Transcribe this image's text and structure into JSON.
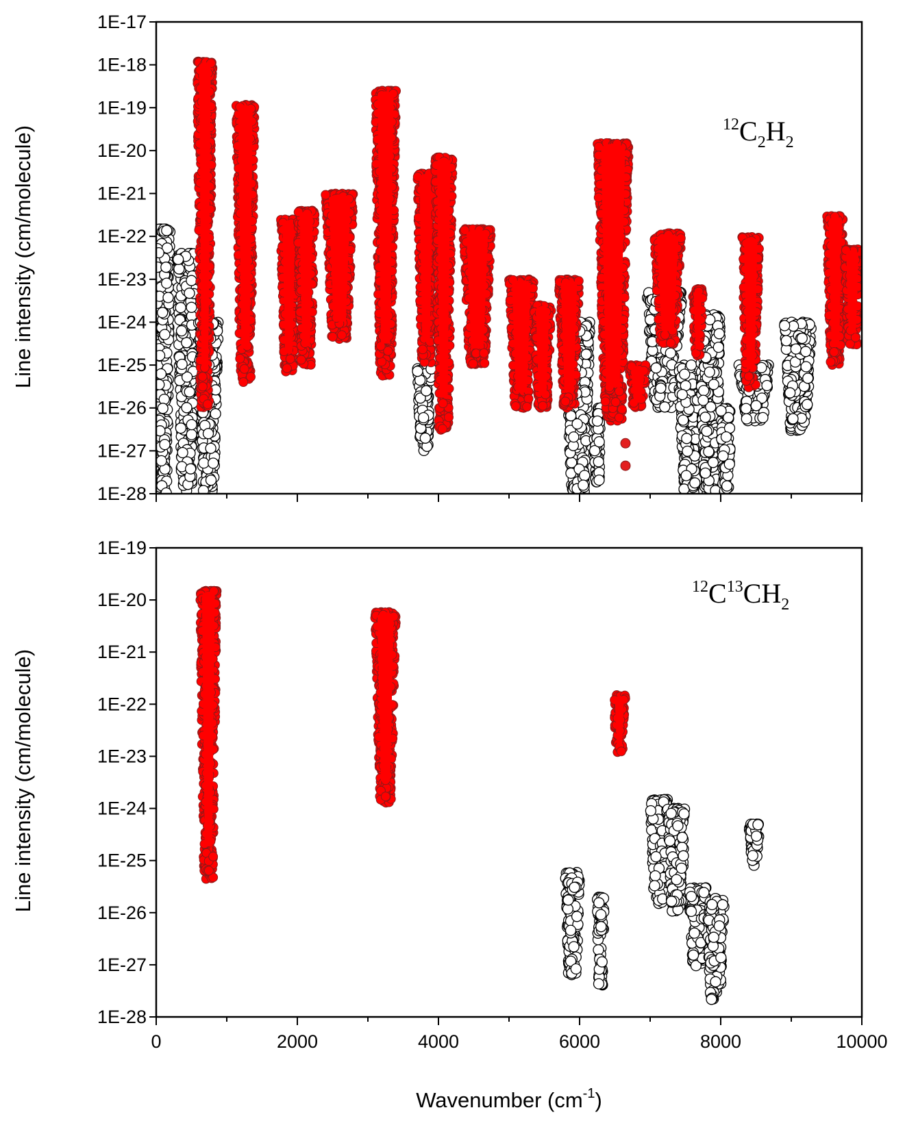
{
  "chart_data": [
    {
      "type": "scatter",
      "panel": "top",
      "xlim": [
        0,
        10000
      ],
      "ylim": [
        1e-28,
        1e-17
      ],
      "yscale": "log",
      "ylabel": "Line intensity (cm/molecule)",
      "xlabel": "",
      "species_label": {
        "pre": "12",
        "sub1": "2",
        "mid": "C",
        "post": "H",
        "sub2": "2"
      },
      "y_ticks": [
        "1E-17",
        "1E-18",
        "1E-19",
        "1E-20",
        "1E-21",
        "1E-22",
        "1E-23",
        "1E-24",
        "1E-25",
        "1E-26",
        "1E-27",
        "1E-28"
      ],
      "x_ticks": [],
      "series": [
        {
          "style": "open-circle",
          "bands": [
            {
              "x": [
                0,
                200
              ],
              "ymax": 1.5e-22,
              "ymin": 1e-28
            },
            {
              "x": [
                300,
                560
              ],
              "ymax": 4e-23,
              "ymin": 1e-28
            },
            {
              "x": [
                600,
                880
              ],
              "ymax": 1e-24,
              "ymin": 1e-28
            },
            {
              "x": [
                3700,
                3900
              ],
              "ymax": 1e-25,
              "ymin": 1e-27
            },
            {
              "x": [
                5800,
                6150
              ],
              "ymax": 1e-24,
              "ymin": 1e-28
            },
            {
              "x": [
                6200,
                6300
              ],
              "ymax": 1e-26,
              "ymin": 1.5e-28
            },
            {
              "x": [
                6950,
                7450
              ],
              "ymax": 5e-24,
              "ymin": 1e-26
            },
            {
              "x": [
                7400,
                7700
              ],
              "ymax": 1e-25,
              "ymin": 1e-28
            },
            {
              "x": [
                7700,
                8000
              ],
              "ymax": 1.5e-24,
              "ymin": 1e-28
            },
            {
              "x": [
                8000,
                8150
              ],
              "ymax": 1e-26,
              "ymin": 1e-28
            },
            {
              "x": [
                8250,
                8700
              ],
              "ymax": 1e-25,
              "ymin": 5e-27
            },
            {
              "x": [
                8900,
                9300
              ],
              "ymax": 1e-24,
              "ymin": 3e-27
            }
          ]
        },
        {
          "style": "filled-red",
          "bands": [
            {
              "x": [
                580,
                800
              ],
              "ymax": 1.2e-18,
              "ymin": 1e-26
            },
            {
              "x": [
                1130,
                1400
              ],
              "ymax": 1.2e-19,
              "ymin": 4e-26
            },
            {
              "x": [
                1760,
                2000
              ],
              "ymax": 2.5e-22,
              "ymin": 7e-26
            },
            {
              "x": [
                2000,
                2250
              ],
              "ymax": 4e-22,
              "ymin": 1e-25
            },
            {
              "x": [
                2400,
                2800
              ],
              "ymax": 1e-21,
              "ymin": 4e-25
            },
            {
              "x": [
                3100,
                3400
              ],
              "ymax": 2.5e-19,
              "ymin": 5e-26
            },
            {
              "x": [
                3700,
                3950
              ],
              "ymax": 3e-21,
              "ymin": 1e-25
            },
            {
              "x": [
                3950,
                4200
              ],
              "ymax": 7e-21,
              "ymin": 3e-27
            },
            {
              "x": [
                4350,
                4750
              ],
              "ymax": 1.5e-22,
              "ymin": 1e-25
            },
            {
              "x": [
                5000,
                5350
              ],
              "ymax": 1e-23,
              "ymin": 1e-26
            },
            {
              "x": [
                5350,
                5600
              ],
              "ymax": 2.5e-24,
              "ymin": 1e-26
            },
            {
              "x": [
                5700,
                6000
              ],
              "ymax": 1e-23,
              "ymin": 1e-26
            },
            {
              "x": [
                6250,
                6700
              ],
              "ymax": 1.5e-20,
              "ymin": 5e-27
            },
            {
              "x": [
                6700,
                6950
              ],
              "ymax": 1e-25,
              "ymin": 1e-26
            },
            {
              "x": [
                7050,
                7450
              ],
              "ymax": 1.2e-22,
              "ymin": 3e-25
            },
            {
              "x": [
                7600,
                7750
              ],
              "ymax": 6e-24,
              "ymin": 1.5e-25
            },
            {
              "x": [
                8300,
                8550
              ],
              "ymax": 1e-22,
              "ymin": 3e-26
            },
            {
              "x": [
                9500,
                9750
              ],
              "ymax": 3e-22,
              "ymin": 1e-25
            },
            {
              "x": [
                9750,
                9980
              ],
              "ymax": 5e-23,
              "ymin": 3e-25
            }
          ],
          "points": [
            {
              "x": 6650,
              "y": 1.5e-27
            },
            {
              "x": 6650,
              "y": 4.5e-28
            }
          ]
        }
      ]
    },
    {
      "type": "scatter",
      "panel": "bottom",
      "xlim": [
        0,
        10000
      ],
      "ylim": [
        1e-28,
        1e-19
      ],
      "yscale": "log",
      "ylabel": "Line intensity (cm/molecule)",
      "xlabel": "Wavenumber (cm",
      "xlabel_sup": "-1",
      "xlabel_end": ")",
      "species_label": {
        "pre": "12",
        "mid": "C",
        "pre2": "13",
        "post": "CH",
        "sub2": "2"
      },
      "y_ticks": [
        "1E-19",
        "1E-20",
        "1E-21",
        "1E-22",
        "1E-23",
        "1E-24",
        "1E-25",
        "1E-26",
        "1E-27",
        "1E-28"
      ],
      "x_ticks": [
        "0",
        "2000",
        "4000",
        "6000",
        "8000",
        "10000"
      ],
      "series": [
        {
          "style": "open-circle",
          "bands": [
            {
              "x": [
                5800,
                6000
              ],
              "ymax": 6e-26,
              "ymin": 6e-28
            },
            {
              "x": [
                6250,
                6350
              ],
              "ymax": 2e-26,
              "ymin": 4e-28
            },
            {
              "x": [
                7000,
                7250
              ],
              "ymax": 1.5e-24,
              "ymin": 1.5e-26
            },
            {
              "x": [
                7250,
                7500
              ],
              "ymax": 1e-24,
              "ymin": 1e-26
            },
            {
              "x": [
                7550,
                7800
              ],
              "ymax": 3e-26,
              "ymin": 8e-28
            },
            {
              "x": [
                7800,
                8050
              ],
              "ymax": 2e-26,
              "ymin": 2e-28
            },
            {
              "x": [
                8400,
                8550
              ],
              "ymax": 5e-25,
              "ymin": 8e-26
            }
          ]
        },
        {
          "style": "filled-red",
          "bands": [
            {
              "x": [
                620,
                860
              ],
              "ymax": 1.5e-20,
              "ymin": 4e-26
            },
            {
              "x": [
                3100,
                3400
              ],
              "ymax": 6e-21,
              "ymin": 1.2e-24
            },
            {
              "x": [
                6480,
                6650
              ],
              "ymax": 1.5e-22,
              "ymin": 1.2e-23
            }
          ]
        }
      ]
    }
  ]
}
